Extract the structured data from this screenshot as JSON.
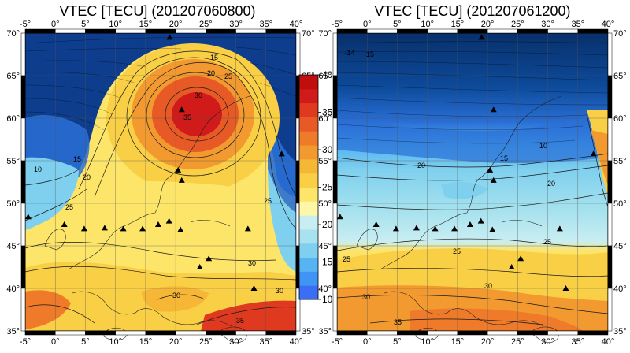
{
  "maps": [
    {
      "title": "VTEC [TECU] (201207060800)",
      "lon_ticks": [
        "-5°",
        "0°",
        "5°",
        "10°",
        "15°",
        "20°",
        "25°",
        "30°",
        "35°",
        "40°"
      ],
      "lat_ticks": [
        "70°",
        "65°",
        "60°",
        "55°",
        "50°",
        "45°",
        "40°",
        "35°"
      ],
      "contour_labels": [
        "15",
        "20",
        "25",
        "30",
        "35",
        "10",
        "15",
        "20",
        "25",
        "25",
        "30",
        "30",
        "35",
        "30"
      ]
    },
    {
      "title": "VTEC [TECU] (201207061200)",
      "lon_ticks": [
        "-5°",
        "0°",
        "5°",
        "10°",
        "15°",
        "20°",
        "25°",
        "30°",
        "35°",
        "40°"
      ],
      "lat_ticks": [
        "70°",
        "65°",
        "60°",
        "55°",
        "50°",
        "45°",
        "40°",
        "35°"
      ],
      "contour_labels": [
        "-14",
        "15",
        "10",
        "15",
        "20",
        "20",
        "25",
        "25",
        "30",
        "35",
        "25",
        "30"
      ]
    }
  ],
  "colorbar": {
    "ticks": [
      "40",
      "35",
      "30",
      "25",
      "20",
      "15",
      "10"
    ],
    "colors": [
      "#3a6ef5",
      "#3f94f4",
      "#56b4f2",
      "#7fd0ee",
      "#a7e2ee",
      "#c9eef2",
      "#fff7a8",
      "#fde56a",
      "#f9cf45",
      "#f6b636",
      "#f29a2f",
      "#ee7a2a",
      "#e85a25",
      "#df3a20",
      "#d11a1a",
      "#c00d0d"
    ]
  },
  "stations": 14
}
